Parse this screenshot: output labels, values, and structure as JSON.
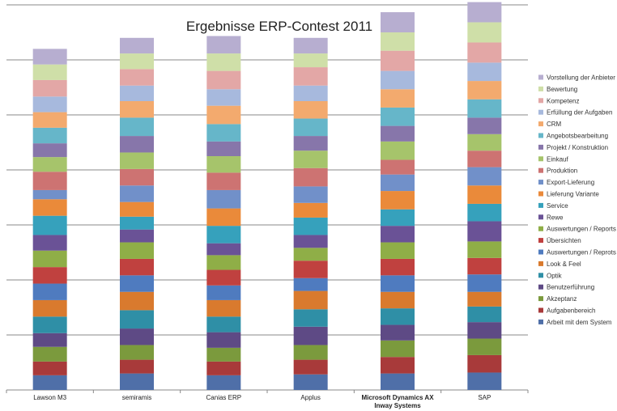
{
  "chart_data": {
    "type": "bar",
    "stacked": true,
    "title": "Ergebnisse ERP-Contest 2011",
    "xlabel": "",
    "ylabel": "",
    "ylim": [
      0,
      420
    ],
    "grid": true,
    "legend_position": "right",
    "categories": [
      "Lawson M3",
      "semiramis",
      "Canias ERP",
      "Applus",
      "Microsoft Dynamics AX\nInway Systems",
      "SAP"
    ],
    "series": [
      {
        "name": "Arbeit mit dem System",
        "color": "#4f6fa8",
        "values": [
          16,
          18,
          16,
          17,
          18,
          19
        ]
      },
      {
        "name": "Aufgabenbereich",
        "color": "#a83a3a",
        "values": [
          15,
          15,
          15,
          16,
          18,
          19
        ]
      },
      {
        "name": "Akzeptanz",
        "color": "#7b9a3d",
        "values": [
          16,
          16,
          15,
          16,
          18,
          18
        ]
      },
      {
        "name": "Benutzerführung",
        "color": "#5e4a85",
        "values": [
          15,
          18,
          17,
          20,
          17,
          18
        ]
      },
      {
        "name": "Optik",
        "color": "#2f8fa6",
        "values": [
          18,
          20,
          17,
          19,
          18,
          17
        ]
      },
      {
        "name": "Look & Feel",
        "color": "#d97a2e",
        "values": [
          18,
          20,
          18,
          20,
          18,
          16
        ]
      },
      {
        "name": "Auswertungen / Reprots",
        "color": "#4f7bbf",
        "values": [
          18,
          18,
          16,
          14,
          18,
          19
        ]
      },
      {
        "name": "Übersichten",
        "color": "#c0413f",
        "values": [
          18,
          18,
          17,
          19,
          18,
          18
        ]
      },
      {
        "name": "Auswertungen / Reports",
        "color": "#8fae47",
        "values": [
          18,
          18,
          16,
          14,
          18,
          18
        ]
      },
      {
        "name": "Rewe",
        "color": "#6a5296",
        "values": [
          17,
          14,
          13,
          14,
          18,
          22
        ]
      },
      {
        "name": "Service",
        "color": "#36a1bc",
        "values": [
          21,
          14,
          19,
          19,
          18,
          19
        ]
      },
      {
        "name": "Lieferung Variante",
        "color": "#ea8a3a",
        "values": [
          18,
          16,
          19,
          16,
          20,
          20
        ]
      },
      {
        "name": "Export-Lieferung",
        "color": "#7190c9",
        "values": [
          10,
          18,
          20,
          18,
          18,
          20
        ]
      },
      {
        "name": "Produktion",
        "color": "#cd7372",
        "values": [
          20,
          18,
          19,
          20,
          16,
          18
        ]
      },
      {
        "name": "Einkauf",
        "color": "#a6c46b",
        "values": [
          16,
          18,
          18,
          19,
          20,
          18
        ]
      },
      {
        "name": "Projekt / Konstruktion",
        "color": "#8776aa",
        "values": [
          15,
          18,
          16,
          16,
          17,
          18
        ]
      },
      {
        "name": "Angebotsbearbeitung",
        "color": "#66b6c9",
        "values": [
          17,
          20,
          19,
          19,
          20,
          20
        ]
      },
      {
        "name": "CRM",
        "color": "#f3aa6e",
        "values": [
          17,
          18,
          20,
          19,
          20,
          20
        ]
      },
      {
        "name": "Erfüllung der Aufgaben",
        "color": "#a7b9dd",
        "values": [
          17,
          17,
          18,
          17,
          20,
          20
        ]
      },
      {
        "name": "Kompetenz",
        "color": "#e3a7a6",
        "values": [
          18,
          18,
          20,
          20,
          22,
          22
        ]
      },
      {
        "name": "Bewertung",
        "color": "#cfdfa8",
        "values": [
          17,
          17,
          19,
          15,
          20,
          22
        ]
      },
      {
        "name": "Vorstellung der Anbieter",
        "color": "#b7aed0",
        "values": [
          17,
          17,
          19,
          17,
          22,
          22
        ]
      }
    ]
  }
}
